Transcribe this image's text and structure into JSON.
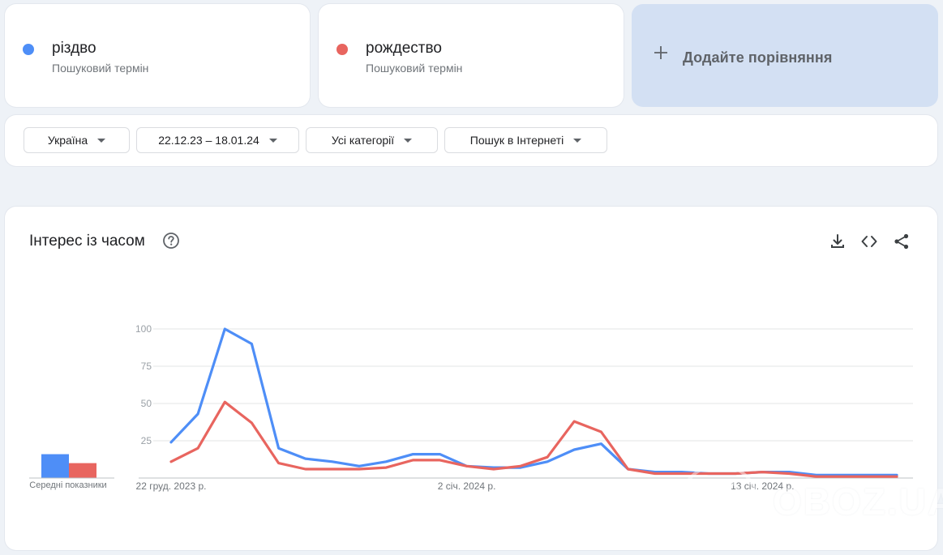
{
  "terms": [
    {
      "name": "різдво",
      "subtitle": "Пошуковий термін",
      "color": "#4e8ef7"
    },
    {
      "name": "рождество",
      "subtitle": "Пошуковий термін",
      "color": "#e8655f"
    }
  ],
  "add_comparison": {
    "label": "Додайте порівняння",
    "icon": "plus-icon"
  },
  "filters": {
    "region": "Україна",
    "date_range": "22.12.23 – 18.01.24",
    "category": "Усі категорії",
    "search_type": "Пошук в Інтернеті"
  },
  "chart_section": {
    "title": "Інтерес із часом",
    "icons": [
      "help-icon",
      "download-icon",
      "embed-icon",
      "share-icon"
    ],
    "avg_label": "Середні показники"
  },
  "chart_data": {
    "type": "line",
    "y_ticks": [
      "25",
      "50",
      "75",
      "100"
    ],
    "ylim": [
      0,
      100
    ],
    "x_labels": [
      "22 груд. 2023 р.",
      "2 січ. 2024 р.",
      "13 січ. 2024 р."
    ],
    "x_label_indices": [
      0,
      11,
      22
    ],
    "x_count": 28,
    "series": [
      {
        "name": "різдво",
        "color": "#4e8ef7",
        "values": [
          24,
          43,
          100,
          90,
          20,
          13,
          11,
          8,
          11,
          16,
          16,
          8,
          7,
          7,
          11,
          19,
          23,
          6,
          4,
          4,
          3,
          3,
          4,
          4,
          2,
          2,
          2,
          2
        ],
        "average": 16
      },
      {
        "name": "рождество",
        "color": "#e8655f",
        "values": [
          11,
          20,
          51,
          37,
          10,
          6,
          6,
          6,
          7,
          12,
          12,
          8,
          6,
          8,
          14,
          38,
          31,
          6,
          3,
          3,
          3,
          3,
          4,
          3,
          1,
          1,
          1,
          1
        ],
        "average": 10
      }
    ],
    "grid": true
  },
  "watermark": {
    "text": "OBOZ.UA"
  }
}
